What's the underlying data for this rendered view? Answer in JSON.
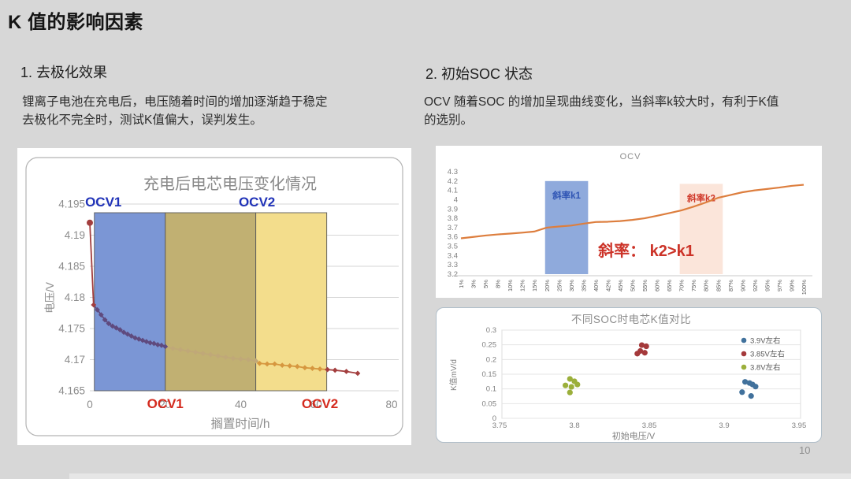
{
  "slide": {
    "title": "K 值的影响因素",
    "page_number": "10",
    "background_color": "#d7d7d7"
  },
  "section1": {
    "heading": "1. 去极化效果",
    "body_line1": "锂离子电池在充电后，电压随着时间的增加逐渐趋于稳定",
    "body_line2": "去极化不完全时，测试K值偏大，误判发生。"
  },
  "section2": {
    "heading": "2. 初始SOC 状态",
    "body_line1": "OCV 随着SOC 的增加呈现曲线变化，当斜率k较大时，有利于K值",
    "body_line2": "的选别。"
  },
  "chart_data": [
    {
      "id": "voltage_decay",
      "type": "line",
      "title": "充电后电芯电压变化情况",
      "xlabel": "搁置时间/h",
      "ylabel": "电压/V",
      "xlim": [
        0,
        80
      ],
      "ylim": [
        4.165,
        4.195
      ],
      "xticks": [
        0,
        20,
        40,
        60,
        80
      ],
      "yticks": [
        4.195,
        4.19,
        4.185,
        4.18,
        4.175,
        4.17,
        4.165
      ],
      "grid": true,
      "line_color": "#a33e3e",
      "title_color": "#8a8a8a",
      "points": [
        [
          0,
          4.192
        ],
        [
          1,
          4.1788
        ],
        [
          2,
          4.178
        ],
        [
          3,
          4.1772
        ],
        [
          4,
          4.1764
        ],
        [
          5,
          4.1758
        ],
        [
          6,
          4.1754
        ],
        [
          7,
          4.1751
        ],
        [
          8,
          4.1748
        ],
        [
          9,
          4.1744
        ],
        [
          10,
          4.1741
        ],
        [
          11,
          4.1738
        ],
        [
          12,
          4.1735
        ],
        [
          13,
          4.1733
        ],
        [
          14,
          4.1731
        ],
        [
          15,
          4.1729
        ],
        [
          16,
          4.1727
        ],
        [
          17,
          4.1726
        ],
        [
          18,
          4.1724
        ],
        [
          19,
          4.1723
        ],
        [
          20,
          4.1721
        ],
        [
          22,
          4.1718
        ],
        [
          24,
          4.1716
        ],
        [
          26,
          4.1714
        ],
        [
          28,
          4.1712
        ],
        [
          30,
          4.171
        ],
        [
          32,
          4.1708
        ],
        [
          34,
          4.1706
        ],
        [
          36,
          4.1704
        ],
        [
          38,
          4.1702
        ],
        [
          40,
          4.1701
        ],
        [
          42,
          4.17
        ],
        [
          44,
          4.1698
        ],
        [
          45,
          4.1694
        ],
        [
          47,
          4.1693
        ],
        [
          49,
          4.1693
        ],
        [
          51,
          4.1691
        ],
        [
          53,
          4.169
        ],
        [
          55,
          4.1689
        ],
        [
          57,
          4.1687
        ],
        [
          59,
          4.1686
        ],
        [
          61,
          4.1685
        ],
        [
          63,
          4.1684
        ],
        [
          65,
          4.1683
        ],
        [
          68,
          4.1681
        ],
        [
          71,
          4.1678
        ]
      ],
      "regions": [
        {
          "x0": 1.2,
          "x1": 20,
          "fill": "#7b96d5",
          "marker_color": "#5f4a7e"
        },
        {
          "x0": 20,
          "x1": 44,
          "fill": "#c1b072",
          "marker_color": "#c0a878"
        },
        {
          "x0": 44,
          "x1": 62.8,
          "fill": "#f3dd8c",
          "marker_color": "#d6973f"
        }
      ],
      "labels_top": [
        {
          "text": "OCV1",
          "x": 3.6
        },
        {
          "text": "OCV2",
          "x": 44.3
        }
      ],
      "labels_top_color": "#2133b8",
      "labels_bottom": [
        {
          "text": "OCV1",
          "x": 20
        },
        {
          "text": "OCV2",
          "x": 61
        }
      ],
      "labels_bottom_color": "#d42a1e"
    },
    {
      "id": "ocv_curve",
      "type": "line",
      "title": "OCV",
      "title_color": "#8c8c8c",
      "categories": [
        "1%",
        "3%",
        "5%",
        "8%",
        "10%",
        "12%",
        "15%",
        "20%",
        "25%",
        "30%",
        "35%",
        "40%",
        "42%",
        "45%",
        "50%",
        "55%",
        "60%",
        "65%",
        "70%",
        "75%",
        "80%",
        "85%",
        "87%",
        "90%",
        "92%",
        "95%",
        "97%",
        "99%",
        "100%"
      ],
      "values": [
        3.585,
        3.6,
        3.615,
        3.627,
        3.636,
        3.646,
        3.658,
        3.7,
        3.712,
        3.722,
        3.742,
        3.76,
        3.763,
        3.77,
        3.783,
        3.8,
        3.827,
        3.855,
        3.885,
        3.925,
        3.97,
        4.02,
        4.05,
        4.08,
        4.1,
        4.115,
        4.13,
        4.148,
        4.16
      ],
      "ylim": [
        3.2,
        4.3
      ],
      "yticks": [
        4.3,
        4.2,
        4.1,
        4,
        3.9,
        3.8,
        3.7,
        3.6,
        3.5,
        3.4,
        3.3,
        3.2
      ],
      "grid": false,
      "line_color": "#dd7e3e",
      "bands": [
        {
          "text": "斜率k1",
          "from": "20%",
          "to": "35%",
          "fill": "#8faadc",
          "text_color": "#2f55b4",
          "top": 4.2
        },
        {
          "text": "斜率k2",
          "from": "70%",
          "to": "85%",
          "fill": "#fbe5da",
          "text_color": "#d03a2b",
          "top": 4.17
        }
      ],
      "annotation": {
        "text": "斜率：  k2>k1",
        "color": "#cc3328"
      }
    },
    {
      "id": "k_value_scatter",
      "type": "scatter",
      "title": "不同SOC时电芯K值对比",
      "title_color": "#8c8c8c",
      "xlabel": "初始电压/V",
      "ylabel": "K值mV/d",
      "xlim": [
        3.75,
        3.95
      ],
      "xticks": [
        3.75,
        3.8,
        3.85,
        3.9,
        3.95
      ],
      "ylim": [
        0,
        0.3
      ],
      "yticks": [
        0.3,
        0.25,
        0.2,
        0.15,
        0.1,
        0.05,
        0
      ],
      "grid": true,
      "legend_position": "right",
      "series": [
        {
          "name": "3.9V左右",
          "color": "#41719c",
          "points": [
            [
              3.914,
              0.124
            ],
            [
              3.917,
              0.12
            ],
            [
              3.919,
              0.115
            ],
            [
              3.921,
              0.108
            ],
            [
              3.912,
              0.089
            ],
            [
              3.918,
              0.076
            ]
          ]
        },
        {
          "name": "3.85V左右",
          "color": "#a4393b",
          "points": [
            [
              3.845,
              0.249
            ],
            [
              3.848,
              0.245
            ],
            [
              3.844,
              0.229
            ],
            [
              3.847,
              0.223
            ],
            [
              3.842,
              0.22
            ]
          ]
        },
        {
          "name": "3.8V左右",
          "color": "#9baf3b",
          "points": [
            [
              3.797,
              0.134
            ],
            [
              3.8,
              0.126
            ],
            [
              3.794,
              0.112
            ],
            [
              3.798,
              0.107
            ],
            [
              3.802,
              0.115
            ],
            [
              3.797,
              0.088
            ]
          ]
        }
      ]
    }
  ]
}
